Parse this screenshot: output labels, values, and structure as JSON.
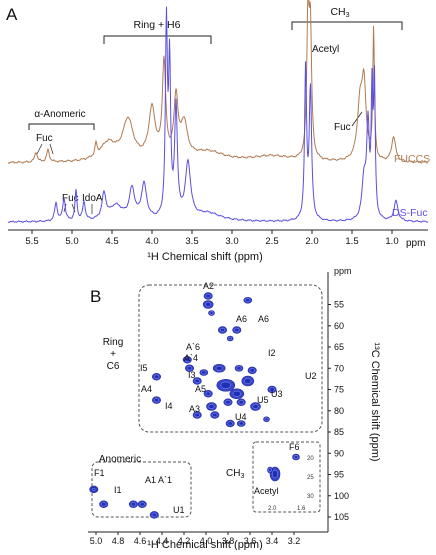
{
  "panel_a": {
    "letter": "A",
    "brackets": {
      "ring_h6": "Ring + H6",
      "ch3": "CH",
      "ch3_sub": "3",
      "alpha_anomeric": "α-Anomeric"
    },
    "annotations": {
      "acetyl": "Acetyl",
      "fuc_top_right": "Fuc",
      "fuc_top_left": "Fuc",
      "fuc_bottom": "Fuc",
      "idoa": "IdoA"
    },
    "series": [
      {
        "name": "FUCCS",
        "color": "#b07a52"
      },
      {
        "name": "DS-Fuc",
        "color": "#5a4fe0"
      }
    ],
    "x_ticks": [
      "5.5",
      "5.0",
      "4.5",
      "4.0",
      "3.5",
      "3.0",
      "2.5",
      "2.0",
      "1.5",
      "1.0"
    ],
    "x_unit": "ppm",
    "x_label": "¹H Chemical shift (ppm)"
  },
  "panel_b": {
    "letter": "B",
    "y_unit": "ppm",
    "y_label": "¹³C Chemical shift (ppm)",
    "y_ticks": [
      "55",
      "60",
      "65",
      "70",
      "75",
      "80",
      "85",
      "90",
      "95",
      "100",
      "105"
    ],
    "x_ticks": [
      "5.0",
      "4.8",
      "4.6",
      "4.4",
      "4.2",
      "4.0",
      "3.8",
      "3.6",
      "3.4",
      "3.2"
    ],
    "x_label": "¹H Chemical shift (ppm)",
    "region_labels": {
      "ring_c6": [
        "Ring",
        "+",
        "C6"
      ],
      "anomeric": "Anomeric",
      "ch3": "CH",
      "ch3_sub": "3"
    },
    "peak_labels": [
      "A2",
      "A6",
      "A6",
      "A`6",
      "A`4",
      "I2",
      "I3",
      "I5",
      "A5",
      "U2",
      "A4",
      "U5",
      "U3",
      "I4",
      "A3",
      "U4",
      "F1",
      "I1",
      "A1",
      "A`1",
      "U1",
      "F6",
      "Acetyl"
    ],
    "inset_ch3": {
      "x_ticks": [
        "2.0",
        "1.6"
      ],
      "y_ticks": [
        "20",
        "25",
        "30"
      ]
    }
  },
  "chart_data": [
    {
      "type": "line",
      "x_unit": "ppm",
      "x_range": [
        5.8,
        0.7
      ],
      "x_ticks": [
        5.5,
        5.0,
        4.5,
        4.0,
        3.5,
        3.0,
        2.5,
        2.0,
        1.5,
        1.0
      ],
      "series": [
        {
          "name": "FUCCS",
          "peaks_ppm": [
            5.45,
            5.3,
            4.7,
            4.3,
            4.0,
            3.85,
            3.7,
            3.6,
            2.05,
            2.02,
            1.4,
            1.35,
            1.23,
            0.98
          ]
        },
        {
          "name": "DS-Fuc",
          "peaks_ppm": [
            5.2,
            5.1,
            4.95,
            4.85,
            4.6,
            4.25,
            4.1,
            3.82,
            3.78,
            3.7,
            3.55,
            2.08,
            2.02,
            1.35,
            1.3,
            1.25,
            1.22,
            0.95
          ]
        }
      ]
    },
    {
      "type": "scatter",
      "x_unit": "ppm",
      "y_unit": "ppm",
      "x_range": [
        5.1,
        3.1
      ],
      "y_range": [
        50,
        108
      ],
      "points": [
        {
          "label": "A2",
          "x": 3.98,
          "y": 53
        },
        {
          "label": "A6",
          "x": 3.85,
          "y": 61
        },
        {
          "label": "A6",
          "x": 3.72,
          "y": 61
        },
        {
          "label": "A`6",
          "x": 4.17,
          "y": 68
        },
        {
          "label": "A`4",
          "x": 4.15,
          "y": 70
        },
        {
          "label": "I2",
          "x": 3.58,
          "y": 70.5
        },
        {
          "label": "I3",
          "x": 4.08,
          "y": 73
        },
        {
          "label": "I5",
          "x": 4.45,
          "y": 72
        },
        {
          "label": "A5",
          "x": 3.98,
          "y": 76
        },
        {
          "label": "U2",
          "x": 3.4,
          "y": 75
        },
        {
          "label": "A4",
          "x": 4.45,
          "y": 77.5
        },
        {
          "label": "U5",
          "x": 3.8,
          "y": 78
        },
        {
          "label": "U3",
          "x": 3.68,
          "y": 78
        },
        {
          "label": "I4",
          "x": 4.08,
          "y": 81
        },
        {
          "label": "A3",
          "x": 3.92,
          "y": 81
        },
        {
          "label": "U4",
          "x": 3.78,
          "y": 83
        },
        {
          "label": "F1",
          "x": 5.02,
          "y": 98.5
        },
        {
          "label": "I1",
          "x": 4.93,
          "y": 102
        },
        {
          "label": "A1",
          "x": 4.66,
          "y": 102
        },
        {
          "label": "A`1",
          "x": 4.58,
          "y": 102
        },
        {
          "label": "U1",
          "x": 4.47,
          "y": 104.5
        }
      ]
    }
  ]
}
